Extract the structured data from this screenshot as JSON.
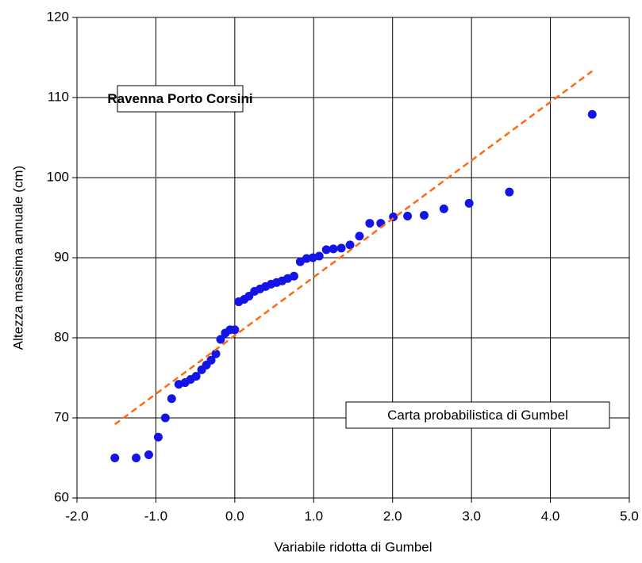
{
  "chart_data": {
    "type": "scatter",
    "x_label": "Variabile ridotta di Gumbel",
    "y_label": "Altezza massima annuale (cm)",
    "annotations": [
      "Ravenna Porto Corsini",
      "Carta probabilistica di Gumbel"
    ],
    "xlim": [
      -2,
      5
    ],
    "ylim": [
      60,
      120
    ],
    "xticks": [
      {
        "value": -2,
        "label": "-2.0"
      },
      {
        "value": -1,
        "label": "-1.0"
      },
      {
        "value": 0,
        "label": "0.0"
      },
      {
        "value": 1,
        "label": "1.0"
      },
      {
        "value": 2,
        "label": "2.0"
      },
      {
        "value": 3,
        "label": "3.0"
      },
      {
        "value": 4,
        "label": "4.0"
      },
      {
        "value": 5,
        "label": "5.0"
      }
    ],
    "yticks": [
      60,
      70,
      80,
      90,
      100,
      110,
      120
    ],
    "grid": true,
    "series": [
      {
        "type": "scatter",
        "color": "#1414e6",
        "x": [
          -1.52,
          -1.25,
          -1.09,
          -0.97,
          -0.88,
          -0.8,
          -0.71,
          -0.63,
          -0.56,
          -0.49,
          -0.42,
          -0.36,
          -0.3,
          -0.24,
          -0.18,
          -0.12,
          -0.06,
          0.0,
          0.05,
          0.12,
          0.18,
          0.25,
          0.32,
          0.39,
          0.46,
          0.53,
          0.6,
          0.67,
          0.75,
          0.83,
          0.91,
          0.99,
          1.07,
          1.16,
          1.25,
          1.35,
          1.46,
          1.58,
          1.71,
          1.85,
          2.01,
          2.19,
          2.4,
          2.65,
          2.97,
          3.48,
          4.53
        ],
        "values": [
          65.0,
          65.0,
          65.4,
          67.6,
          70.0,
          72.4,
          74.2,
          74.4,
          74.8,
          75.2,
          76.0,
          76.6,
          77.2,
          78.0,
          79.8,
          80.6,
          81.0,
          81.0,
          84.5,
          84.8,
          85.2,
          85.8,
          86.1,
          86.4,
          86.7,
          86.9,
          87.1,
          87.4,
          87.7,
          89.5,
          89.9,
          90.0,
          90.2,
          91.0,
          91.1,
          91.2,
          91.6,
          92.7,
          94.3,
          94.3,
          95.1,
          95.2,
          95.3,
          96.1,
          96.8,
          98.2,
          107.9
        ]
      },
      {
        "type": "line",
        "color": "#ff6a10",
        "x": [
          -1.52,
          4.53
        ],
        "values": [
          69.2,
          113.3
        ]
      }
    ]
  }
}
